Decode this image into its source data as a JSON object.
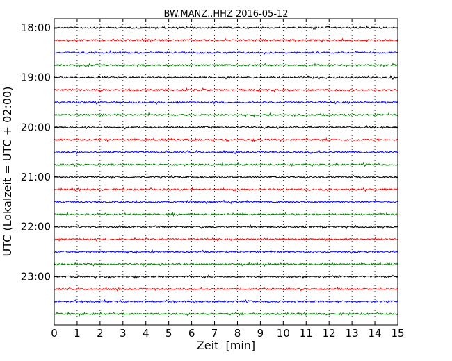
{
  "chart_data": {
    "type": "line",
    "title": "BW.MANZ..HHZ 2016-05-12",
    "xlabel": "Zeit  [min]",
    "ylabel": "UTC (Lokalzeit = UTC + 02:00)",
    "xlim": [
      0,
      15
    ],
    "x_ticks": [
      "0",
      "1",
      "2",
      "3",
      "4",
      "5",
      "6",
      "7",
      "8",
      "9",
      "10",
      "11",
      "12",
      "13",
      "14",
      "15"
    ],
    "y_ticks": [
      "18:00",
      "19:00",
      "20:00",
      "21:00",
      "22:00",
      "23:00"
    ],
    "trace_interval_minutes": 15,
    "grid": "vertical dotted",
    "colors": [
      "#000000",
      "#ff0000",
      "#0000ff",
      "#007f00"
    ],
    "series": [
      {
        "start": "18:00",
        "color": "#000000"
      },
      {
        "start": "18:15",
        "color": "#ff0000"
      },
      {
        "start": "18:30",
        "color": "#0000ff"
      },
      {
        "start": "18:45",
        "color": "#007f00"
      },
      {
        "start": "19:00",
        "color": "#000000"
      },
      {
        "start": "19:15",
        "color": "#ff0000"
      },
      {
        "start": "19:30",
        "color": "#0000ff"
      },
      {
        "start": "19:45",
        "color": "#007f00"
      },
      {
        "start": "20:00",
        "color": "#000000"
      },
      {
        "start": "20:15",
        "color": "#ff0000"
      },
      {
        "start": "20:30",
        "color": "#0000ff"
      },
      {
        "start": "20:45",
        "color": "#007f00"
      },
      {
        "start": "21:00",
        "color": "#000000"
      },
      {
        "start": "21:15",
        "color": "#ff0000"
      },
      {
        "start": "21:30",
        "color": "#0000ff"
      },
      {
        "start": "21:45",
        "color": "#007f00"
      },
      {
        "start": "22:00",
        "color": "#000000"
      },
      {
        "start": "22:15",
        "color": "#ff0000"
      },
      {
        "start": "22:30",
        "color": "#0000ff"
      },
      {
        "start": "22:45",
        "color": "#007f00"
      },
      {
        "start": "23:00",
        "color": "#000000"
      },
      {
        "start": "23:15",
        "color": "#ff0000"
      },
      {
        "start": "23:30",
        "color": "#0000ff"
      },
      {
        "start": "23:45",
        "color": "#007f00"
      }
    ]
  }
}
